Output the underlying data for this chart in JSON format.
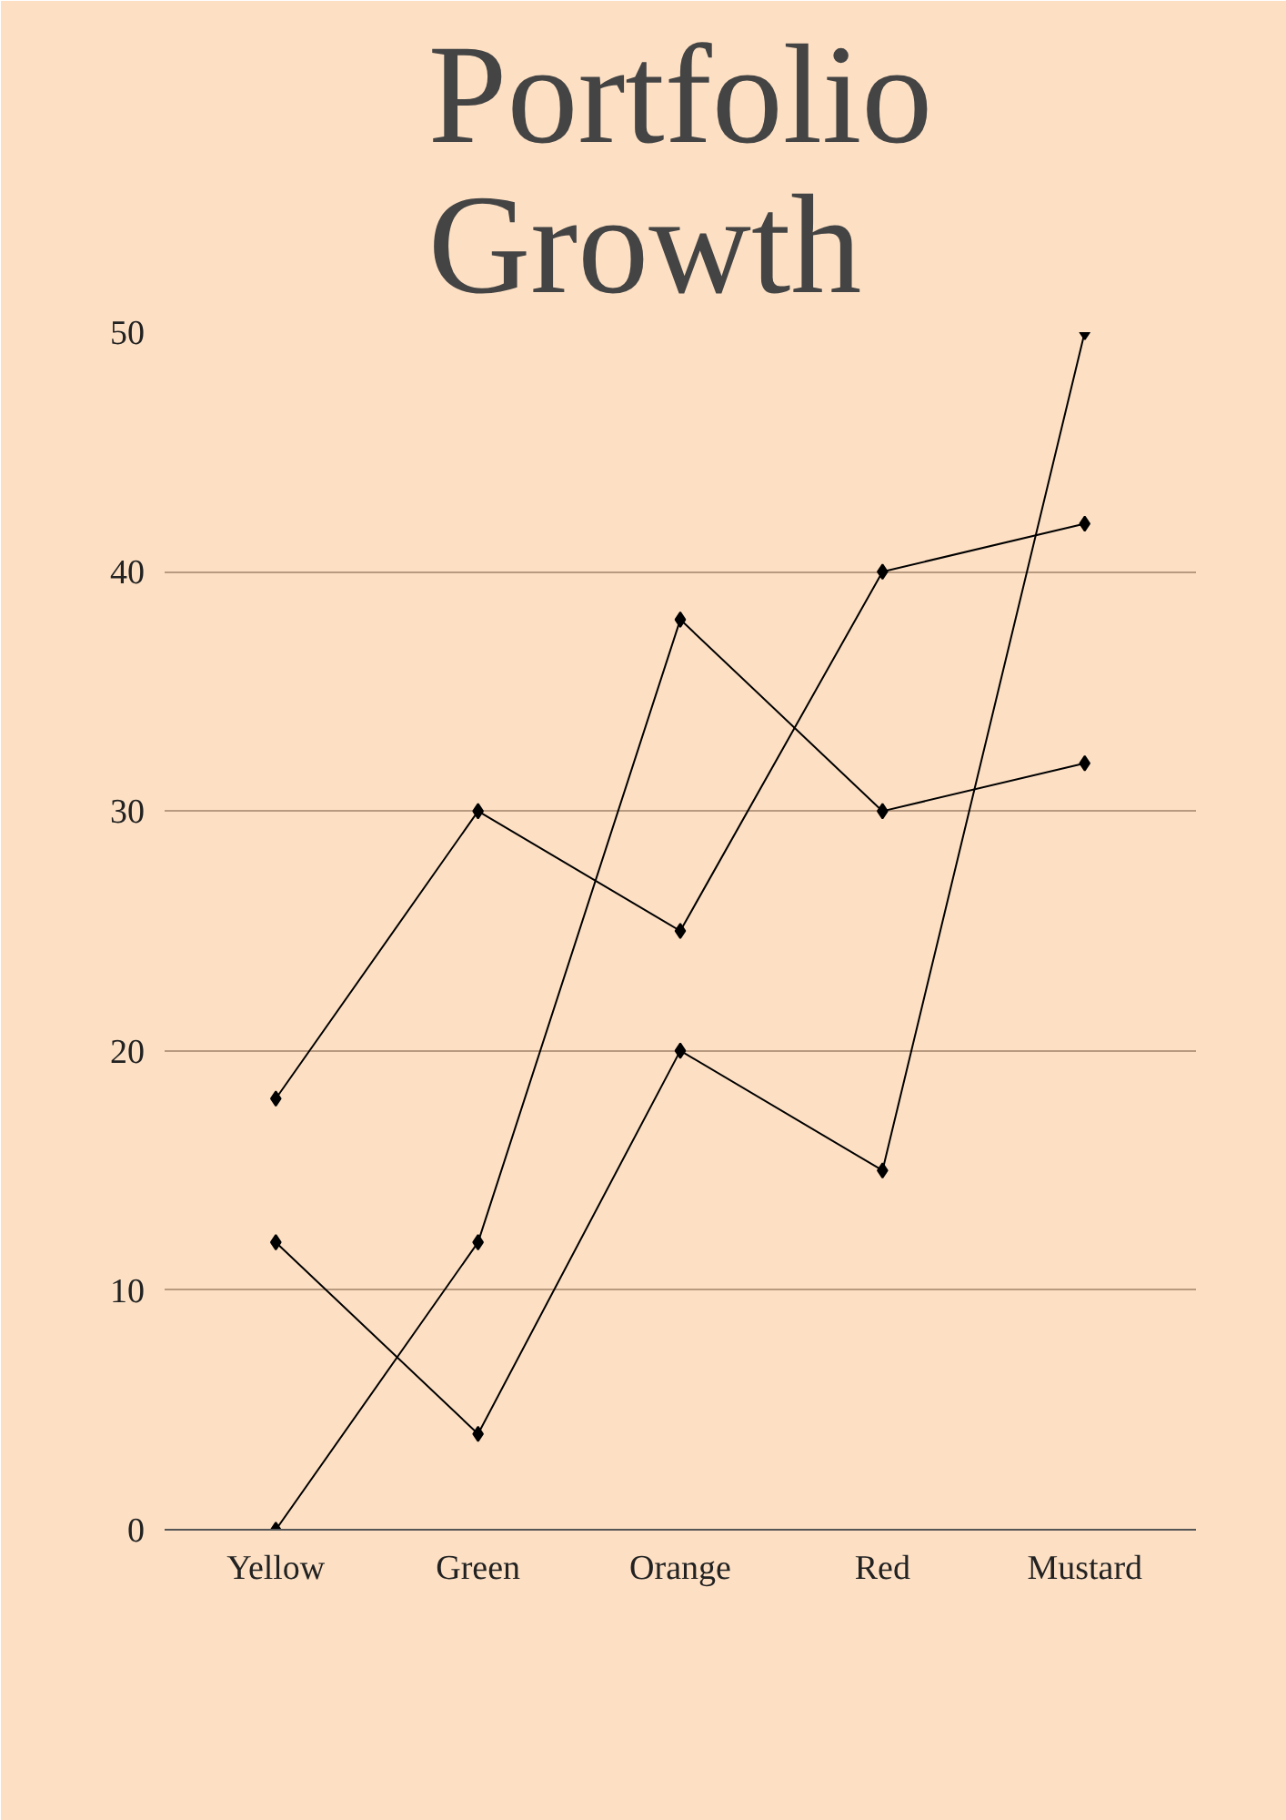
{
  "chart_data": {
    "type": "line",
    "title": "Portfolio Growth",
    "categories": [
      "Yellow",
      "Green",
      "Orange",
      "Red",
      "Mustard"
    ],
    "series": [
      {
        "color": "#000000",
        "values": [
          18,
          30,
          25,
          40,
          42
        ]
      },
      {
        "color": "#000000",
        "values": [
          0,
          12,
          38,
          30,
          32
        ]
      },
      {
        "color": "#000000",
        "values": [
          12,
          4,
          20,
          15,
          50
        ]
      }
    ],
    "ylim": [
      0,
      50
    ],
    "yticks": [
      0,
      10,
      20,
      30,
      40,
      50
    ],
    "grid": "y",
    "marker": "diamond",
    "line_style": "solid"
  }
}
